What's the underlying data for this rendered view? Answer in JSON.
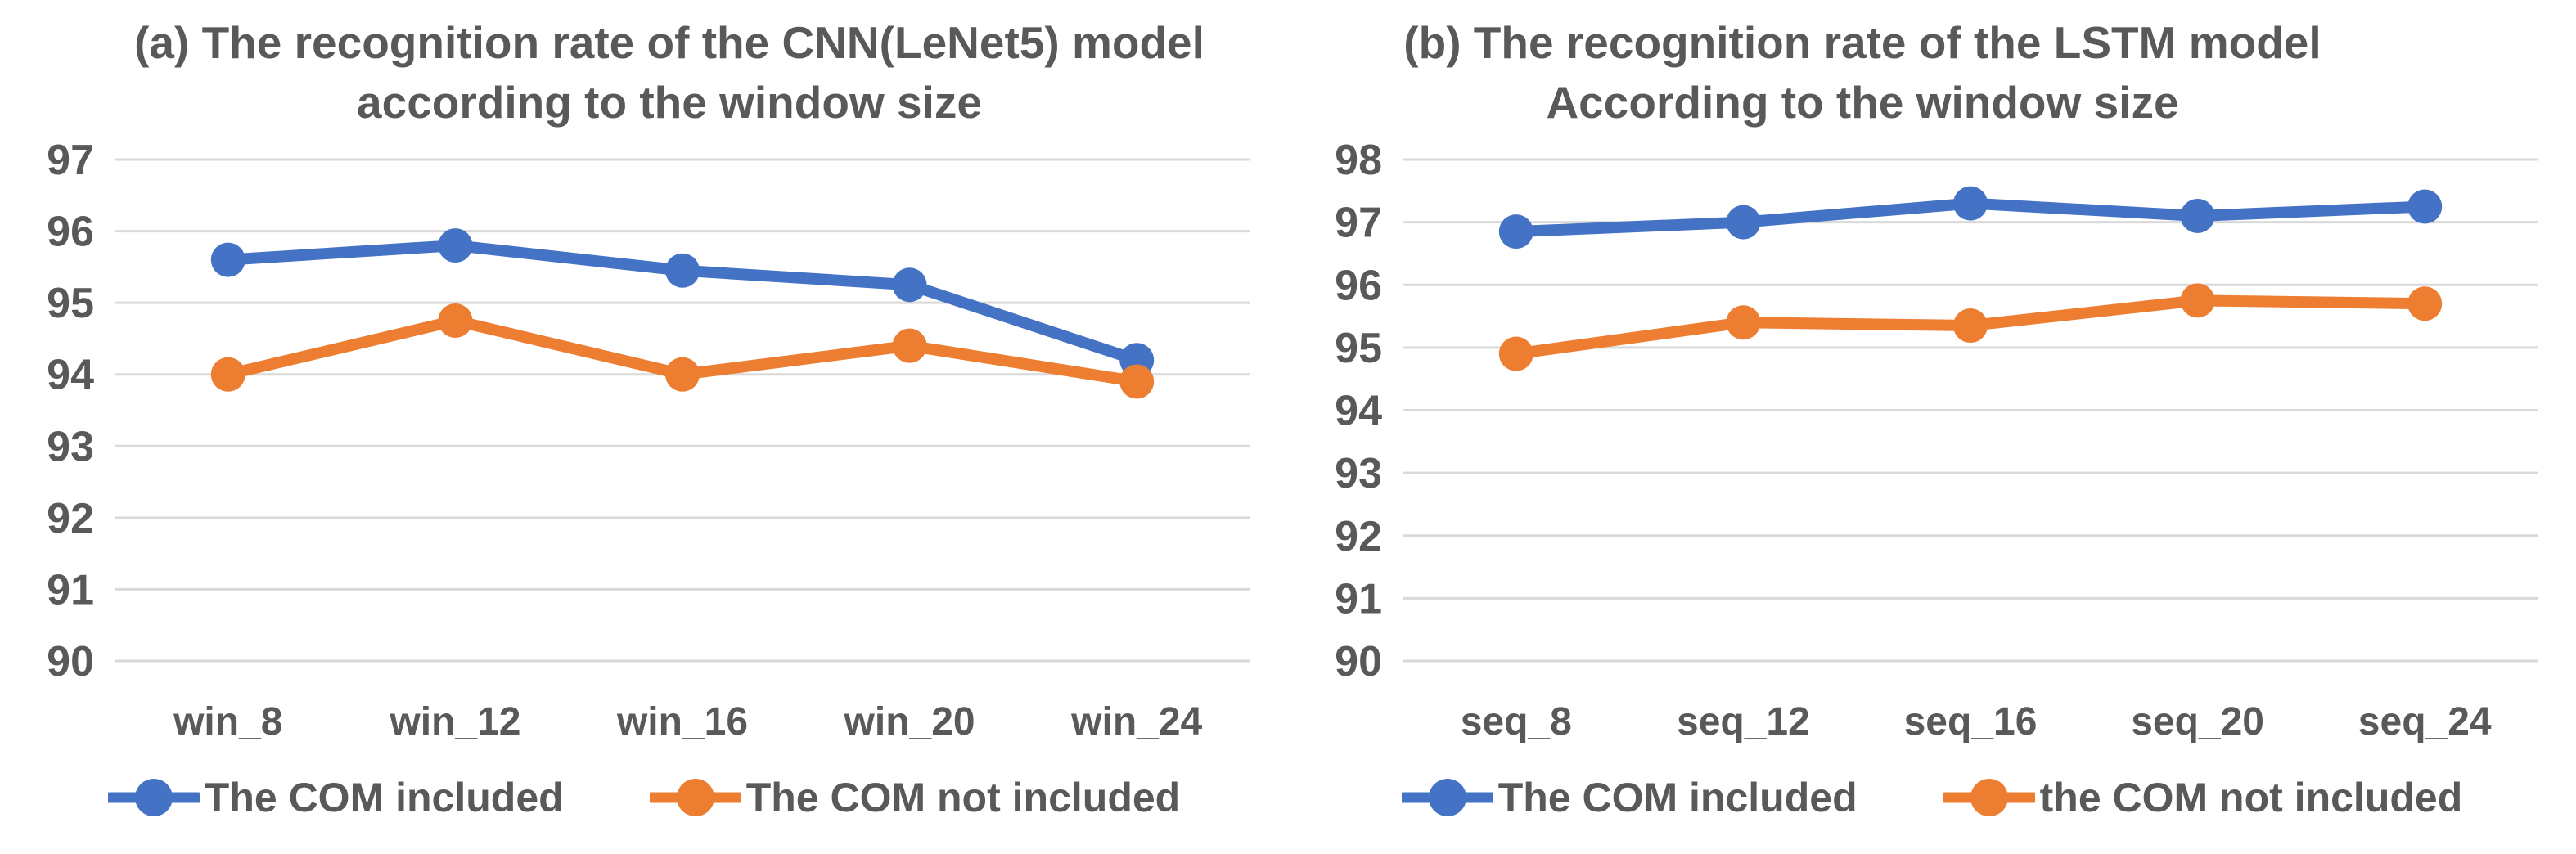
{
  "figure": {
    "background": "#ffffff",
    "text_color": "#595959",
    "gridline_color": "#D9D9D9"
  },
  "chart_data": [
    {
      "id": "cnn",
      "type": "line",
      "title_line1": "(a) The recognition rate of the CNN(LeNet5) model",
      "title_line2": "according to the window size",
      "categories": [
        "win_8",
        "win_12",
        "win_16",
        "win_20",
        "win_24"
      ],
      "y_ticks": [
        97,
        96,
        95,
        94,
        93,
        92,
        91,
        90
      ],
      "ylim": [
        90,
        97
      ],
      "grid": true,
      "legend_position": "bottom",
      "series": [
        {
          "name": "The COM included",
          "color": "#4472C4",
          "values": [
            95.6,
            95.8,
            95.45,
            95.25,
            94.2
          ]
        },
        {
          "name": "The COM not included",
          "color": "#ED7D31",
          "values": [
            94.0,
            94.75,
            94.0,
            94.4,
            93.9
          ]
        }
      ]
    },
    {
      "id": "lstm",
      "type": "line",
      "title_line1": "(b) The recognition rate of the LSTM model",
      "title_line2": "According to the window size",
      "categories": [
        "seq_8",
        "seq_12",
        "seq_16",
        "seq_20",
        "seq_24"
      ],
      "y_ticks": [
        98,
        97,
        96,
        95,
        94,
        93,
        92,
        91,
        90
      ],
      "ylim": [
        90,
        98
      ],
      "grid": true,
      "legend_position": "bottom",
      "series": [
        {
          "name": "The COM included",
          "color": "#4472C4",
          "values": [
            96.85,
            97.0,
            97.3,
            97.1,
            97.25
          ]
        },
        {
          "name": "the COM not included",
          "color": "#ED7D31",
          "values": [
            94.9,
            95.4,
            95.35,
            95.75,
            95.7
          ]
        }
      ]
    }
  ]
}
